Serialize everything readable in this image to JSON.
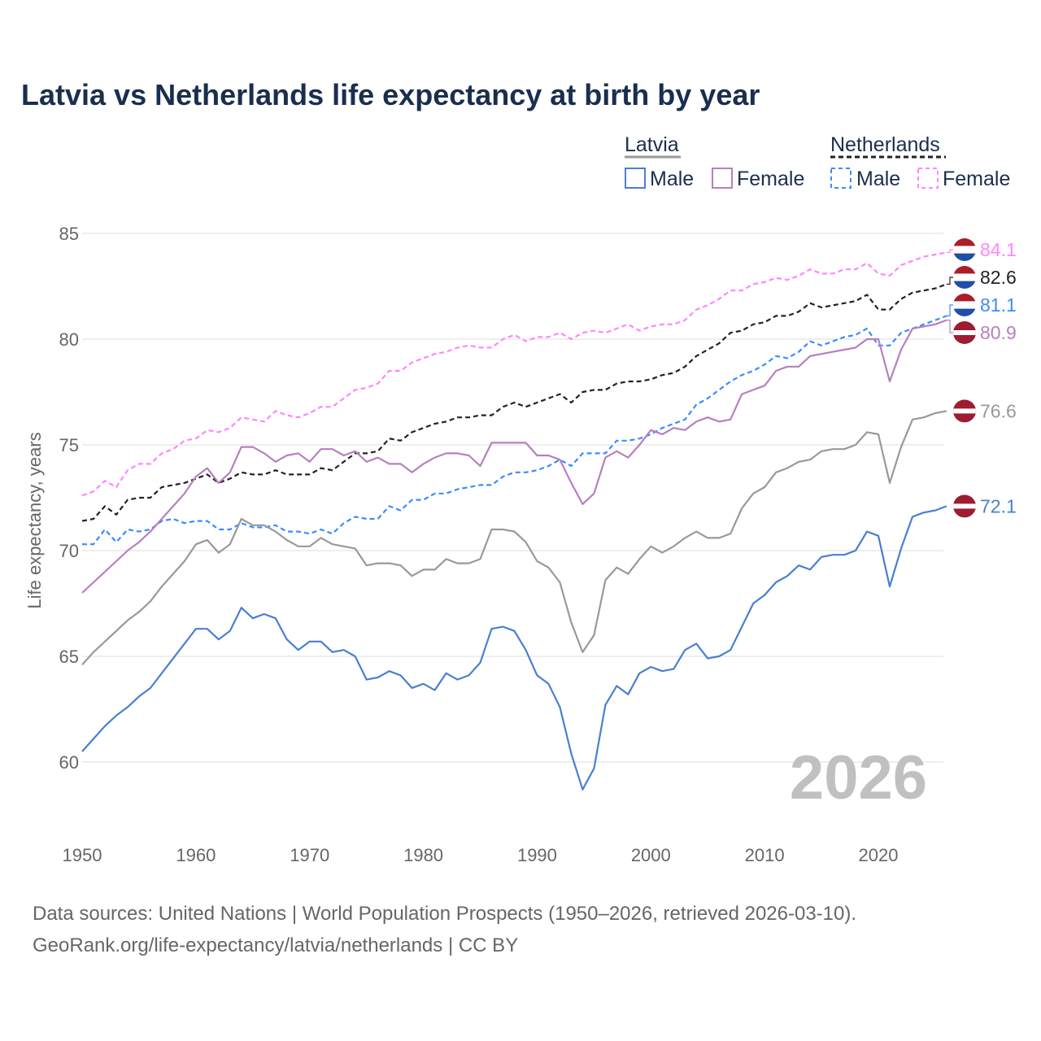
{
  "title": "Latvia vs Netherlands life expectancy at birth by year",
  "watermark_year": "2026",
  "source_line1": "Data sources: United Nations | World Population Prospects (1950–2026, retrieved 2026-03-10).",
  "source_line2": "GeoRank.org/life-expectancy/latvia/netherlands | CC BY",
  "legend": {
    "latvia": "Latvia",
    "netherlands": "Netherlands",
    "male": "Male",
    "female": "Female"
  },
  "chart_data": {
    "type": "line",
    "title": "Latvia vs Netherlands life expectancy at birth by year",
    "xlabel": "",
    "ylabel": "Life expectancy, years",
    "xlim": [
      1950,
      2026
    ],
    "ylim": [
      57.5,
      86
    ],
    "x_ticks": [
      "1950",
      "1960",
      "1970",
      "1980",
      "1990",
      "2000",
      "2010",
      "2020"
    ],
    "y_ticks": [
      "60",
      "65",
      "70",
      "75",
      "80",
      "85"
    ],
    "grid": true,
    "legend_placement": "top-right",
    "x_start": 1950,
    "series": [
      {
        "name": "Netherlands Female",
        "country": "Netherlands",
        "color": "#ff85ff",
        "dashed": true,
        "end_label": "84.1",
        "flag": "netherlands",
        "values": [
          72.6,
          72.8,
          73.3,
          73.0,
          73.8,
          74.1,
          74.1,
          74.6,
          74.8,
          75.2,
          75.3,
          75.7,
          75.6,
          75.8,
          76.3,
          76.2,
          76.1,
          76.6,
          76.4,
          76.3,
          76.5,
          76.8,
          76.8,
          77.2,
          77.6,
          77.7,
          77.9,
          78.5,
          78.5,
          78.9,
          79.1,
          79.3,
          79.4,
          79.6,
          79.7,
          79.6,
          79.6,
          80.0,
          80.2,
          79.9,
          80.1,
          80.1,
          80.3,
          80.0,
          80.3,
          80.4,
          80.3,
          80.5,
          80.7,
          80.4,
          80.6,
          80.7,
          80.7,
          80.9,
          81.4,
          81.6,
          81.9,
          82.3,
          82.3,
          82.6,
          82.7,
          82.9,
          82.8,
          83.0,
          83.3,
          83.1,
          83.1,
          83.3,
          83.3,
          83.6,
          83.1,
          83.0,
          83.5,
          83.7,
          83.9,
          84.0,
          84.1
        ]
      },
      {
        "name": "Netherlands",
        "country": "Netherlands",
        "color": "#222222",
        "dashed": true,
        "end_label": "82.6",
        "flag": "netherlands",
        "values": [
          71.4,
          71.5,
          72.1,
          71.7,
          72.4,
          72.5,
          72.5,
          73.0,
          73.1,
          73.2,
          73.4,
          73.6,
          73.2,
          73.4,
          73.7,
          73.6,
          73.6,
          73.8,
          73.6,
          73.6,
          73.6,
          73.9,
          73.8,
          74.2,
          74.6,
          74.6,
          74.7,
          75.3,
          75.2,
          75.6,
          75.8,
          76.0,
          76.1,
          76.3,
          76.3,
          76.4,
          76.4,
          76.8,
          77.0,
          76.8,
          77.0,
          77.2,
          77.4,
          77.0,
          77.5,
          77.6,
          77.6,
          77.9,
          78.0,
          78.0,
          78.1,
          78.3,
          78.4,
          78.7,
          79.2,
          79.5,
          79.8,
          80.3,
          80.4,
          80.7,
          80.8,
          81.1,
          81.1,
          81.3,
          81.7,
          81.5,
          81.6,
          81.7,
          81.8,
          82.1,
          81.4,
          81.4,
          81.9,
          82.2,
          82.3,
          82.4,
          82.6
        ]
      },
      {
        "name": "Netherlands Male",
        "country": "Netherlands",
        "color": "#3b8bff",
        "dashed": true,
        "end_label": "81.1",
        "flag": "netherlands",
        "values": [
          70.3,
          70.3,
          71.0,
          70.4,
          71.0,
          70.9,
          71.0,
          71.4,
          71.5,
          71.3,
          71.4,
          71.4,
          71.0,
          71.0,
          71.3,
          71.1,
          71.1,
          71.2,
          70.9,
          70.9,
          70.8,
          71.0,
          70.8,
          71.3,
          71.6,
          71.5,
          71.5,
          72.1,
          71.9,
          72.4,
          72.4,
          72.7,
          72.7,
          72.9,
          73.0,
          73.1,
          73.1,
          73.5,
          73.7,
          73.7,
          73.8,
          74.0,
          74.3,
          74.0,
          74.6,
          74.6,
          74.6,
          75.2,
          75.2,
          75.3,
          75.5,
          75.8,
          76.0,
          76.2,
          76.9,
          77.2,
          77.6,
          78.0,
          78.3,
          78.5,
          78.8,
          79.2,
          79.1,
          79.4,
          79.9,
          79.7,
          79.9,
          80.1,
          80.2,
          80.5,
          79.7,
          79.7,
          80.3,
          80.5,
          80.7,
          80.9,
          81.1
        ]
      },
      {
        "name": "Latvia Female",
        "country": "Latvia",
        "color": "#b77fbf",
        "dashed": false,
        "end_label": "80.9",
        "flag": "latvia",
        "values": [
          68.0,
          68.5,
          69.0,
          69.5,
          70.0,
          70.4,
          70.9,
          71.5,
          72.1,
          72.7,
          73.5,
          73.9,
          73.2,
          73.7,
          74.9,
          74.9,
          74.6,
          74.2,
          74.5,
          74.6,
          74.2,
          74.8,
          74.8,
          74.5,
          74.7,
          74.2,
          74.4,
          74.1,
          74.1,
          73.7,
          74.1,
          74.4,
          74.6,
          74.6,
          74.5,
          74.0,
          75.1,
          75.1,
          75.1,
          75.1,
          74.5,
          74.5,
          74.3,
          73.2,
          72.2,
          72.7,
          74.4,
          74.7,
          74.4,
          75.0,
          75.7,
          75.5,
          75.8,
          75.7,
          76.1,
          76.3,
          76.1,
          76.2,
          77.4,
          77.6,
          77.8,
          78.5,
          78.7,
          78.7,
          79.2,
          79.3,
          79.4,
          79.5,
          79.6,
          80.0,
          80.0,
          78.0,
          79.5,
          80.5,
          80.6,
          80.7,
          80.9
        ]
      },
      {
        "name": "Latvia",
        "country": "Latvia",
        "color": "#999999",
        "dashed": false,
        "end_label": "76.6",
        "flag": "latvia",
        "values": [
          64.6,
          65.2,
          65.7,
          66.2,
          66.7,
          67.1,
          67.6,
          68.3,
          68.9,
          69.5,
          70.3,
          70.5,
          69.9,
          70.3,
          71.5,
          71.2,
          71.2,
          70.9,
          70.5,
          70.2,
          70.2,
          70.6,
          70.3,
          70.2,
          70.1,
          69.3,
          69.4,
          69.4,
          69.3,
          68.8,
          69.1,
          69.1,
          69.6,
          69.4,
          69.4,
          69.6,
          71.0,
          71.0,
          70.9,
          70.4,
          69.5,
          69.2,
          68.5,
          66.6,
          65.2,
          66.0,
          68.6,
          69.2,
          68.9,
          69.6,
          70.2,
          69.9,
          70.2,
          70.6,
          70.9,
          70.6,
          70.6,
          70.8,
          72.0,
          72.7,
          73.0,
          73.7,
          73.9,
          74.2,
          74.3,
          74.7,
          74.8,
          74.8,
          75.0,
          75.6,
          75.5,
          73.2,
          74.9,
          76.2,
          76.3,
          76.5,
          76.6
        ]
      },
      {
        "name": "Latvia Male",
        "country": "Latvia",
        "color": "#4a7fcf",
        "dashed": false,
        "end_label": "72.1",
        "flag": "latvia",
        "values": [
          60.5,
          61.1,
          61.7,
          62.2,
          62.6,
          63.1,
          63.5,
          64.2,
          64.9,
          65.6,
          66.3,
          66.3,
          65.8,
          66.2,
          67.3,
          66.8,
          67.0,
          66.8,
          65.8,
          65.3,
          65.7,
          65.7,
          65.2,
          65.3,
          65.0,
          63.9,
          64.0,
          64.3,
          64.1,
          63.5,
          63.7,
          63.4,
          64.2,
          63.9,
          64.1,
          64.7,
          66.3,
          66.4,
          66.2,
          65.3,
          64.1,
          63.7,
          62.6,
          60.4,
          58.7,
          59.7,
          62.7,
          63.6,
          63.2,
          64.2,
          64.5,
          64.3,
          64.4,
          65.3,
          65.6,
          64.9,
          65.0,
          65.3,
          66.4,
          67.5,
          67.9,
          68.5,
          68.8,
          69.3,
          69.1,
          69.7,
          69.8,
          69.8,
          70.0,
          70.9,
          70.7,
          68.3,
          70.1,
          71.6,
          71.8,
          71.9,
          72.1
        ]
      }
    ]
  }
}
